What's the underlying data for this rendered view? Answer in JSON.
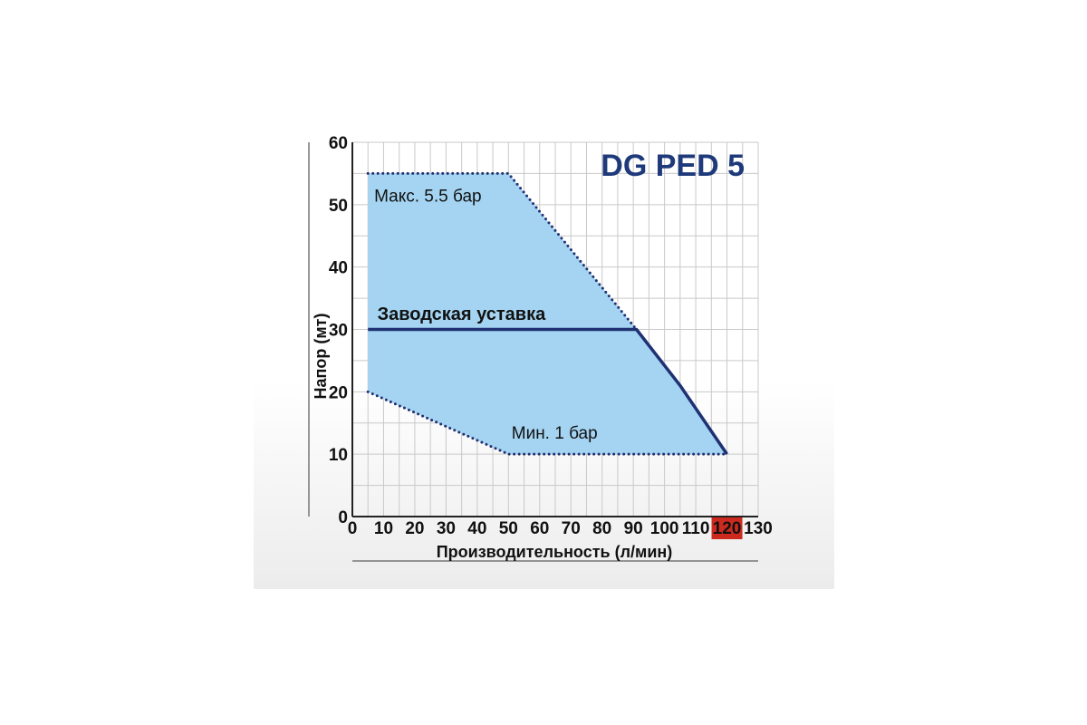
{
  "chart_data": {
    "type": "area",
    "title": "DG PED 5",
    "xlabel": "Производительность (л/мин)",
    "ylabel": "Напор (мт)",
    "xlim": [
      0,
      130
    ],
    "ylim": [
      0,
      60
    ],
    "x_ticks": [
      0,
      10,
      20,
      30,
      40,
      50,
      60,
      70,
      80,
      90,
      100,
      110,
      120,
      130
    ],
    "y_ticks": [
      0,
      10,
      20,
      30,
      40,
      50,
      60
    ],
    "highlighted_x_tick": 120,
    "grid": true,
    "colors": {
      "title": "#1f3a7a",
      "region_fill": "#a4d4f2",
      "curve": "#1f3172",
      "highlight_tick_bg": "#cc2a1e",
      "highlight_tick_text": "#ffffff",
      "grid": "#c9c9c9"
    },
    "operating_region": {
      "points": [
        [
          5,
          55
        ],
        [
          50,
          55
        ],
        [
          91,
          30
        ],
        [
          105,
          21
        ],
        [
          120,
          10
        ],
        [
          50,
          10
        ],
        [
          5,
          20
        ]
      ]
    },
    "series": [
      {
        "name": "Заводская уставка",
        "style": "solid",
        "points": [
          [
            5,
            30
          ],
          [
            91,
            30
          ],
          [
            105,
            21
          ],
          [
            120,
            10
          ]
        ]
      },
      {
        "name": "Макс. 5.5 бар",
        "style": "dotted",
        "points": [
          [
            5,
            55
          ],
          [
            50,
            55
          ],
          [
            91,
            30
          ]
        ]
      },
      {
        "name": "Мин. 1 бар",
        "style": "dotted",
        "points": [
          [
            5,
            20
          ],
          [
            50,
            10
          ],
          [
            120,
            10
          ]
        ]
      }
    ],
    "annotations": [
      {
        "text": "Макс. 5.5 бар",
        "x": 7,
        "y": 50.5,
        "style": "normal"
      },
      {
        "text": "Заводская уставка",
        "x": 8,
        "y": 31.5,
        "style": "bold"
      },
      {
        "text": "Мин. 1 бар",
        "x": 51,
        "y": 12.5,
        "style": "normal"
      }
    ]
  }
}
